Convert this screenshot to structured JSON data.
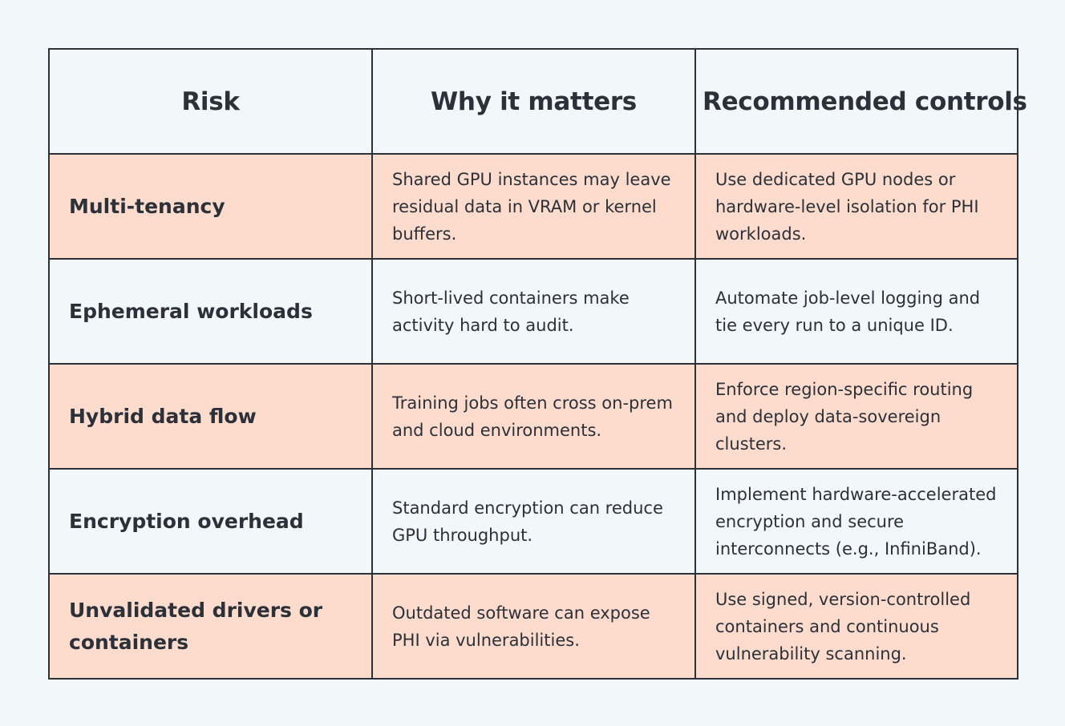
{
  "table": {
    "headers": [
      "Risk",
      "Why it matters",
      "Recommended controls"
    ],
    "rows": [
      {
        "risk": "Multi-tenancy",
        "why": "Shared GPU instances may leave residual data in VRAM or kernel buffers.",
        "controls": "Use dedicated GPU nodes or hardware-level isolation for PHI workloads."
      },
      {
        "risk": "Ephemeral workloads",
        "why": "Short-lived containers make activity hard to audit.",
        "controls": "Automate job-level logging and tie every run to a unique ID."
      },
      {
        "risk": "Hybrid data flow",
        "why": "Training jobs often cross on-prem and cloud environments.",
        "controls": "Enforce region-specific routing and deploy data-sovereign clusters."
      },
      {
        "risk": "Encryption overhead",
        "why": "Standard encryption can reduce GPU throughput.",
        "controls": "Implement hardware-accelerated encryption and secure interconnects (e.g., InfiniBand)."
      },
      {
        "risk": "Unvalidated drivers or containers",
        "why": "Outdated software can expose PHI via vulnerabilities.",
        "controls": "Use signed, version-controlled containers and continuous vulnerability scanning."
      }
    ]
  },
  "colors": {
    "background": "#f2f7f9",
    "shaded_row": "#fddcce",
    "border": "#2b3039",
    "text": "#2b3039"
  }
}
